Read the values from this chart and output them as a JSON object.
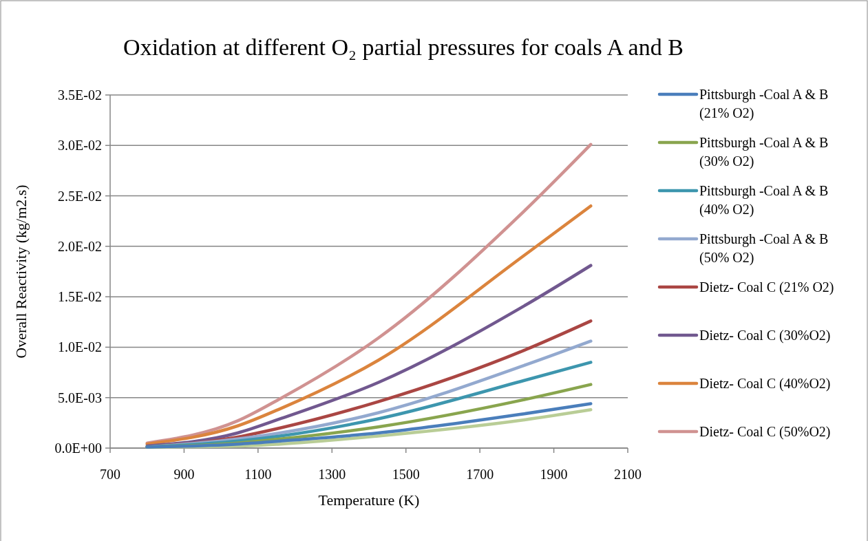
{
  "chart_data": {
    "type": "line",
    "title": "Oxidation at different O₂ partial pressures for coals A and B",
    "xlabel": "Temperature (K)",
    "ylabel": "Overall Reactivity (kg/m2.s)",
    "xlim": [
      700,
      2100
    ],
    "xticks": [
      700,
      900,
      1100,
      1300,
      1500,
      1700,
      1900,
      2100
    ],
    "ylim": [
      0,
      0.035
    ],
    "yticks": [
      {
        "value": 0,
        "label": "0.0E+00"
      },
      {
        "value": 0.005,
        "label": "5.0E-03"
      },
      {
        "value": 0.01,
        "label": "1.0E-02"
      },
      {
        "value": 0.015,
        "label": "1.5E-02"
      },
      {
        "value": 0.02,
        "label": "2.0E-02"
      },
      {
        "value": 0.025,
        "label": "2.5E-02"
      },
      {
        "value": 0.03,
        "label": "3.0E-02"
      },
      {
        "value": 0.035,
        "label": "3.5E-02"
      }
    ],
    "grid": "y",
    "legend": "right",
    "marker": "none",
    "line_style": "solid",
    "x": [
      800,
      1045,
      1160,
      1425,
      1820,
      2000
    ],
    "series": [
      {
        "name": "Pittsburgh -Coal A & B (21% O2)",
        "color": "#4a7ebb",
        "values": [
          0.0001,
          0.0004,
          0.0007,
          0.0015,
          0.0034,
          0.0044
        ]
      },
      {
        "name": "Pittsburgh -Coal A & B (30% O2)",
        "color": "#89a54e",
        "values": [
          0.0001,
          0.0005,
          0.0009,
          0.0021,
          0.0048,
          0.0063
        ]
      },
      {
        "name": "Pittsburgh -Coal A & B (40% O2)",
        "color": "#3d96ae",
        "values": [
          0.0001,
          0.0007,
          0.0012,
          0.0029,
          0.0067,
          0.0085
        ]
      },
      {
        "name": "Pittsburgh -Coal A & B (50% O2)",
        "color": "#93a9cf",
        "values": [
          0.0001,
          0.0009,
          0.0015,
          0.0035,
          0.0082,
          0.0106
        ]
      },
      {
        "name": "Dietz- Coal C (21% O2)",
        "color": "#aa4643",
        "values": [
          0.0001,
          0.0011,
          0.002,
          0.0046,
          0.0097,
          0.0126
        ]
      },
      {
        "name": "Dietz- Coal C (30%O2)",
        "color": "#71588f",
        "values": [
          0.0002,
          0.0015,
          0.0029,
          0.0065,
          0.0141,
          0.0181
        ]
      },
      {
        "name": "Dietz- Coal C (40%O2)",
        "color": "#db843d",
        "values": [
          0.0004,
          0.0022,
          0.0039,
          0.0087,
          0.0191,
          0.024
        ]
      },
      {
        "name": "Dietz- Coal C (50%O2)",
        "color": "#d09291",
        "values": [
          0.0005,
          0.0027,
          0.0049,
          0.0109,
          0.0235,
          0.0301
        ]
      },
      {
        "color": "#b9cd96",
        "values": [
          0.0001,
          0.0002,
          0.0004,
          0.0012,
          0.0028,
          0.0038
        ]
      }
    ]
  }
}
